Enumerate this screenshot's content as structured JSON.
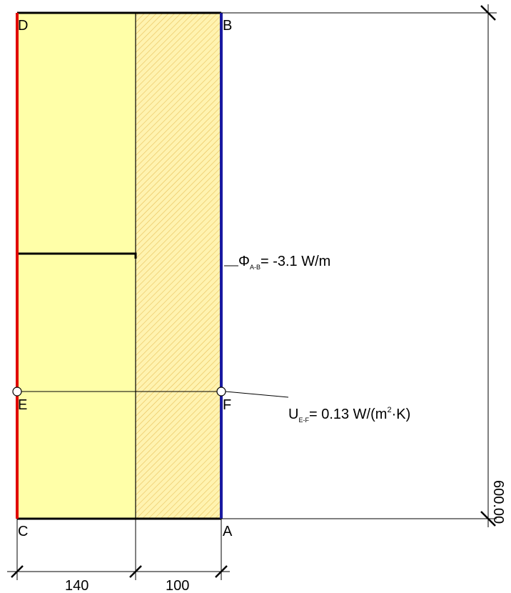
{
  "points": {
    "A": "A",
    "B": "B",
    "C": "C",
    "D": "D",
    "E": "E",
    "F": "F"
  },
  "annotations": {
    "flux": {
      "symbol": "Φ",
      "subscript": "A-B",
      "value": "= -3.1 W/m"
    },
    "u_value": {
      "symbol": "U",
      "subscript": "E-F",
      "value_prefix": "= 0.13 W/(m",
      "superscript": "2",
      "value_suffix": "·K)"
    }
  },
  "dimensions": {
    "width_layer_1": "140",
    "width_layer_2": "100",
    "height": "600.00"
  },
  "colors": {
    "layer_1_fill": "#FFFFA8",
    "layer_2_fill": "#FFF3B0",
    "hatch": "#E8C15A",
    "boundary_left": "#E00000",
    "boundary_right": "#1A1AA0",
    "outline": "#000000"
  }
}
